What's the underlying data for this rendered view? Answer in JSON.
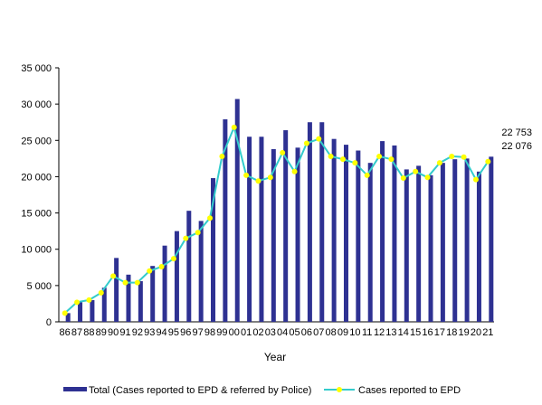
{
  "chart_data": {
    "type": "bar",
    "xlabel": "Year",
    "ylabel": "",
    "ylim": [
      0,
      35000
    ],
    "y_ticks": [
      "0",
      "5 000",
      "10 000",
      "15 000",
      "20 000",
      "25 000",
      "30 000",
      "35 000"
    ],
    "grid": false,
    "legend_position": "bottom",
    "categories": [
      "86",
      "87",
      "88",
      "89",
      "90",
      "91",
      "92",
      "93",
      "94",
      "95",
      "96",
      "97",
      "98",
      "99",
      "00",
      "01",
      "02",
      "03",
      "04",
      "05",
      "06",
      "07",
      "08",
      "09",
      "10",
      "11",
      "12",
      "13",
      "14",
      "15",
      "16",
      "17",
      "18",
      "19",
      "20",
      "21"
    ],
    "series": [
      {
        "name": "Total (Cases reported to EPD & referred by Police)",
        "type": "bar",
        "color": "#2E3192",
        "values": [
          1200,
          2700,
          3000,
          4700,
          8800,
          6500,
          5600,
          7700,
          10500,
          12500,
          15300,
          13900,
          19800,
          27900,
          30700,
          25500,
          25500,
          23800,
          26400,
          24000,
          27500,
          27500,
          25200,
          24400,
          23600,
          21900,
          24900,
          24300,
          21000,
          21500,
          20200,
          21900,
          22400,
          22500,
          20700,
          22753
        ]
      },
      {
        "name": "Cases reported to EPD",
        "type": "line",
        "color": "#33CCCC",
        "marker_color": "#FFFF00",
        "values": [
          1200,
          2700,
          3000,
          4000,
          6300,
          5400,
          5400,
          7000,
          7600,
          8700,
          11500,
          12300,
          14300,
          22800,
          26800,
          20200,
          19400,
          19900,
          23300,
          20700,
          24600,
          25200,
          22800,
          22400,
          21900,
          20200,
          22800,
          22400,
          19800,
          20700,
          19900,
          21900,
          22800,
          22700,
          19600,
          22076
        ]
      }
    ],
    "annotations": [
      "22 753",
      "22 076"
    ]
  }
}
